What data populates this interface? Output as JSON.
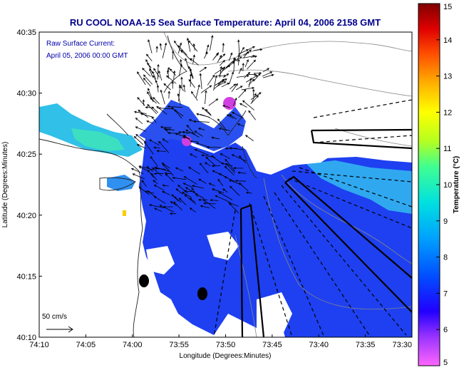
{
  "title": "RU COOL  NOAA-15  Sea Surface Temperature:  April 04, 2006 2158 GMT",
  "annotation": {
    "line1": "Raw Surface Current:",
    "line2": "April 05, 2006 00:00 GMT"
  },
  "scale_label": "50 cm/s",
  "x_axis": {
    "label": "Longitude (Degrees:Minutes)",
    "ticks": [
      "74:10",
      "74:05",
      "74:00",
      "73:55",
      "73:50",
      "73:45",
      "73:40",
      "73:35",
      "73:30"
    ]
  },
  "y_axis": {
    "label": "Latitude (Degrees:Minutes)",
    "ticks": [
      "40:35",
      "40:30",
      "40:25",
      "40:20",
      "40:15",
      "40:10"
    ]
  },
  "colorbar": {
    "label": "Temperature (°C)",
    "ticks": [
      "15",
      "14",
      "13",
      "12",
      "11",
      "10",
      "9",
      "8",
      "7",
      "6",
      "5"
    ],
    "range": [
      5,
      15
    ],
    "colors": [
      "#ff66ff",
      "#8000ff",
      "#0000ff",
      "#0060ff",
      "#00b4ff",
      "#00e6c8",
      "#64ff64",
      "#c8ff00",
      "#ffff00",
      "#ffb400",
      "#ff6400",
      "#ff0000",
      "#b40000",
      "#800000"
    ]
  },
  "colors": {
    "title": "#00008c",
    "annotation": "#0000aa",
    "water_main": "#1a3cf0",
    "water_cyan": "#2dc8e6",
    "land": "#ffffff"
  }
}
